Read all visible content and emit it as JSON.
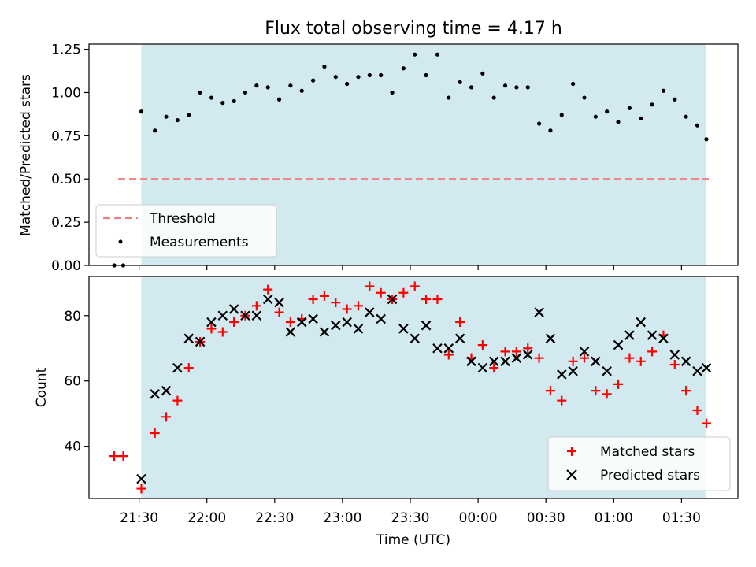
{
  "chart_data": [
    {
      "type": "scatter",
      "title": "Flux total observing time = 4.17 h",
      "xlabel": "",
      "ylabel": "Matched/Predicted stars",
      "ylim": [
        0,
        1.28
      ],
      "yticks": [
        "0.00",
        "0.25",
        "0.50",
        "0.75",
        "1.00",
        "1.25"
      ],
      "ytick_values": [
        0,
        0.25,
        0.5,
        0.75,
        1.0,
        1.25
      ],
      "threshold": {
        "name": "Threshold",
        "value": 0.5,
        "color": "#f08080"
      },
      "shaded_span": {
        "start": "21:31",
        "end": "01:41",
        "color": "#d3e9f0"
      },
      "series": [
        {
          "name": "Measurements",
          "color": "#000000",
          "x": [
            "21:19",
            "21:23",
            "21:31",
            "21:37",
            "21:42",
            "21:47",
            "21:52",
            "21:57",
            "22:02",
            "22:07",
            "22:12",
            "22:17",
            "22:22",
            "22:27",
            "22:32",
            "22:37",
            "22:42",
            "22:47",
            "22:52",
            "22:57",
            "23:02",
            "23:07",
            "23:12",
            "23:17",
            "23:22",
            "23:27",
            "23:32",
            "23:37",
            "23:42",
            "23:47",
            "23:52",
            "23:57",
            "00:02",
            "00:07",
            "00:12",
            "00:17",
            "00:22",
            "00:27",
            "00:32",
            "00:37",
            "00:42",
            "00:47",
            "00:52",
            "00:57",
            "01:02",
            "01:07",
            "01:12",
            "01:17",
            "01:22",
            "01:27",
            "01:32",
            "01:37",
            "01:41"
          ],
          "values": [
            0.0,
            0.0,
            0.89,
            0.78,
            0.86,
            0.84,
            0.87,
            1.0,
            0.97,
            0.94,
            0.95,
            1.0,
            1.04,
            1.03,
            0.96,
            1.04,
            1.01,
            1.07,
            1.15,
            1.09,
            1.05,
            1.09,
            1.1,
            1.1,
            1.0,
            1.14,
            1.22,
            1.1,
            1.22,
            0.97,
            1.06,
            1.03,
            1.11,
            0.97,
            1.04,
            1.03,
            1.03,
            0.82,
            0.78,
            0.87,
            1.05,
            0.97,
            0.86,
            0.89,
            0.83,
            0.91,
            0.85,
            0.93,
            1.01,
            0.96,
            0.86,
            0.81,
            0.73
          ]
        }
      ],
      "legend": {
        "position": "lower-left"
      },
      "grid": false
    },
    {
      "type": "scatter",
      "xlabel": "Time (UTC)",
      "ylabel": "Count",
      "ylim": [
        24,
        92
      ],
      "xticks": [
        "21:30",
        "22:00",
        "22:30",
        "23:00",
        "23:30",
        "00:00",
        "00:30",
        "01:00",
        "01:30"
      ],
      "yticks": [
        "40",
        "60",
        "80"
      ],
      "ytick_values": [
        40,
        60,
        80
      ],
      "shaded_span": {
        "start": "21:31",
        "end": "01:41",
        "color": "#d3e9f0"
      },
      "series": [
        {
          "name": "Matched stars",
          "marker": "+",
          "color": "#ff0000",
          "x": [
            "21:19",
            "21:23",
            "21:31",
            "21:37",
            "21:42",
            "21:47",
            "21:52",
            "21:57",
            "22:02",
            "22:07",
            "22:12",
            "22:17",
            "22:22",
            "22:27",
            "22:32",
            "22:37",
            "22:42",
            "22:47",
            "22:52",
            "22:57",
            "23:02",
            "23:07",
            "23:12",
            "23:17",
            "23:22",
            "23:27",
            "23:32",
            "23:37",
            "23:42",
            "23:47",
            "23:52",
            "23:57",
            "00:02",
            "00:07",
            "00:12",
            "00:17",
            "00:22",
            "00:27",
            "00:32",
            "00:37",
            "00:42",
            "00:47",
            "00:52",
            "00:57",
            "01:02",
            "01:07",
            "01:12",
            "01:17",
            "01:22",
            "01:27",
            "01:32",
            "01:37",
            "01:41"
          ],
          "values": [
            37,
            37,
            27,
            44,
            49,
            54,
            64,
            72,
            76,
            75,
            78,
            80,
            83,
            88,
            81,
            78,
            79,
            85,
            86,
            84,
            82,
            83,
            89,
            87,
            85,
            87,
            89,
            85,
            85,
            68,
            78,
            67,
            71,
            64,
            69,
            69,
            70,
            67,
            57,
            54,
            66,
            67,
            57,
            56,
            59,
            67,
            66,
            69,
            74,
            65,
            57,
            51,
            47
          ]
        },
        {
          "name": "Predicted stars",
          "marker": "x",
          "color": "#000000",
          "x": [
            "21:31",
            "21:37",
            "21:42",
            "21:47",
            "21:52",
            "21:57",
            "22:02",
            "22:07",
            "22:12",
            "22:17",
            "22:22",
            "22:27",
            "22:32",
            "22:37",
            "22:42",
            "22:47",
            "22:52",
            "22:57",
            "23:02",
            "23:07",
            "23:12",
            "23:17",
            "23:22",
            "23:27",
            "23:32",
            "23:37",
            "23:42",
            "23:47",
            "23:52",
            "23:57",
            "00:02",
            "00:07",
            "00:12",
            "00:17",
            "00:22",
            "00:27",
            "00:32",
            "00:37",
            "00:42",
            "00:47",
            "00:52",
            "00:57",
            "01:02",
            "01:07",
            "01:12",
            "01:17",
            "01:22",
            "01:27",
            "01:32",
            "01:37",
            "01:41"
          ],
          "values": [
            30,
            56,
            57,
            64,
            73,
            72,
            78,
            80,
            82,
            80,
            80,
            85,
            84,
            75,
            78,
            79,
            75,
            77,
            78,
            76,
            81,
            79,
            85,
            76,
            73,
            77,
            70,
            70,
            73,
            66,
            64,
            66,
            66,
            67,
            68,
            81,
            73,
            62,
            63,
            69,
            66,
            63,
            71,
            74,
            78,
            74,
            73,
            68,
            66,
            63,
            64
          ]
        }
      ],
      "legend": {
        "position": "lower-right"
      },
      "grid": false
    }
  ]
}
